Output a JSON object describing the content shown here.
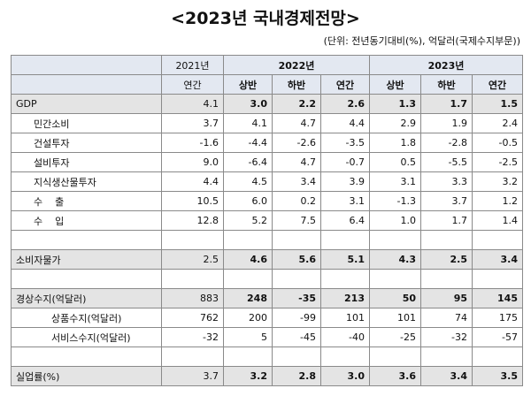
{
  "title": "<2023년 국내경제전망>",
  "unit": "(단위: 전년동기대비(%), 억달러(국제수지부문))",
  "table": {
    "header": {
      "years": [
        {
          "label": "2021년",
          "span": 1
        },
        {
          "label": "2022년",
          "span": 3
        },
        {
          "label": "2023년",
          "span": 3
        }
      ],
      "periods": [
        "연간",
        "상반",
        "하반",
        "연간",
        "상반",
        "하반",
        "연간"
      ]
    },
    "rows": [
      {
        "label": "GDP",
        "emphasis": true,
        "indent": 0,
        "values": [
          "4.1",
          "3.0",
          "2.2",
          "2.6",
          "1.3",
          "1.7",
          "1.5"
        ]
      },
      {
        "label": "민간소비",
        "indent": 1,
        "values": [
          "3.7",
          "4.1",
          "4.7",
          "4.4",
          "2.9",
          "1.9",
          "2.4"
        ]
      },
      {
        "label": "건설투자",
        "indent": 1,
        "values": [
          "-1.6",
          "-4.4",
          "-2.6",
          "-3.5",
          "1.8",
          "-2.8",
          "-0.5"
        ]
      },
      {
        "label": "설비투자",
        "indent": 1,
        "values": [
          "9.0",
          "-6.4",
          "4.7",
          "-0.7",
          "0.5",
          "-5.5",
          "-2.5"
        ]
      },
      {
        "label": "지식생산물투자",
        "indent": 1,
        "values": [
          "4.4",
          "4.5",
          "3.4",
          "3.9",
          "3.1",
          "3.3",
          "3.2"
        ]
      },
      {
        "label": "수    출",
        "indent": 1,
        "values": [
          "10.5",
          "6.0",
          "0.2",
          "3.1",
          "-1.3",
          "3.7",
          "1.2"
        ]
      },
      {
        "label": "수    입",
        "indent": 1,
        "values": [
          "12.8",
          "5.2",
          "7.5",
          "6.4",
          "1.0",
          "1.7",
          "1.4"
        ]
      },
      null,
      {
        "label": "소비자물가",
        "emphasis": true,
        "indent": 0,
        "values": [
          "2.5",
          "4.6",
          "5.6",
          "5.1",
          "4.3",
          "2.5",
          "3.4"
        ]
      },
      null,
      {
        "label": "경상수지(억달러)",
        "emphasis": true,
        "indent": 0,
        "values": [
          "883",
          "248",
          "-35",
          "213",
          "50",
          "95",
          "145"
        ]
      },
      {
        "label": "상품수지(억달러)",
        "indent": 2,
        "values": [
          "762",
          "200",
          "-99",
          "101",
          "101",
          "74",
          "175"
        ]
      },
      {
        "label": "서비스수지(억달러)",
        "indent": 2,
        "values": [
          "-32",
          "5",
          "-45",
          "-40",
          "-25",
          "-32",
          "-57"
        ]
      },
      null,
      {
        "label": "실업률(%)",
        "emphasis": true,
        "indent": 0,
        "values": [
          "3.7",
          "3.2",
          "2.8",
          "3.0",
          "3.6",
          "3.4",
          "3.5"
        ]
      }
    ]
  }
}
